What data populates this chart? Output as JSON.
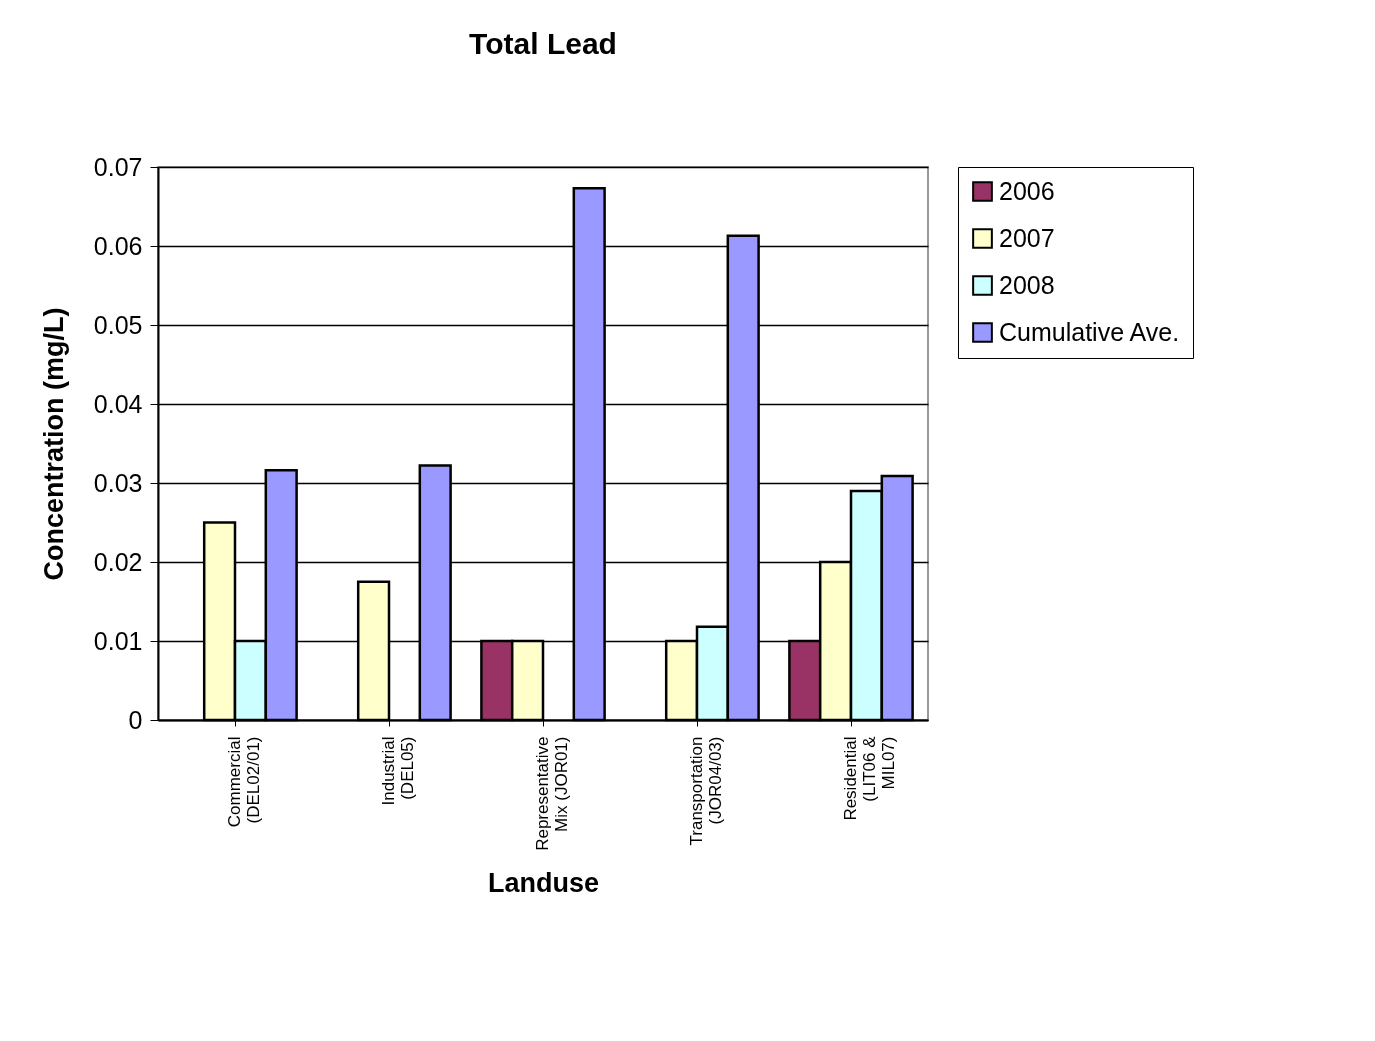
{
  "chart_data": {
    "type": "bar",
    "title": "Total Lead",
    "xlabel": "Landuse",
    "ylabel": "Concentration (mg/L)",
    "categories": [
      "Commercial\n(DEL02/01)",
      "Industrial\n(DEL05)",
      "Representative\nMix (JOR01)",
      "Transportation\n(JOR04/03)",
      "Residential\n(LIT06 &\nMIL07)"
    ],
    "series": [
      {
        "name": "2006",
        "color": "#993366",
        "values": [
          null,
          null,
          0.01,
          null,
          0.01
        ]
      },
      {
        "name": "2007",
        "color": "#ffffcc",
        "values": [
          0.025,
          0.0175,
          0.01,
          0.01,
          0.02
        ]
      },
      {
        "name": "2008",
        "color": "#ccffff",
        "values": [
          0.01,
          null,
          null,
          0.0118,
          0.029
        ]
      },
      {
        "name": "Cumulative Ave.",
        "color": "#9999ff",
        "values": [
          0.0316,
          0.0322,
          0.0673,
          0.0613,
          0.0309
        ]
      }
    ],
    "ylim": [
      0,
      0.07
    ],
    "yticks": [
      0,
      0.01,
      0.02,
      0.03,
      0.04,
      0.05,
      0.06,
      0.07
    ],
    "grid": "y",
    "legend": "right"
  }
}
